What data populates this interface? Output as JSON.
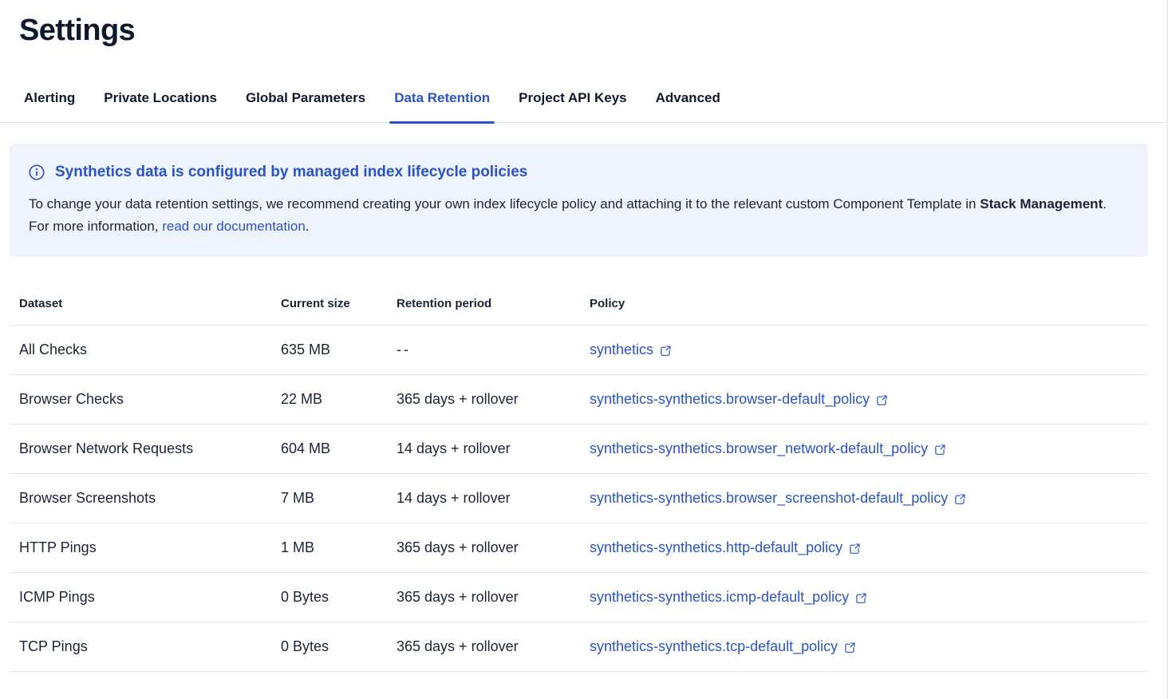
{
  "page": {
    "title": "Settings"
  },
  "tabs": {
    "items": [
      {
        "label": "Alerting",
        "selected": false
      },
      {
        "label": "Private Locations",
        "selected": false
      },
      {
        "label": "Global Parameters",
        "selected": false
      },
      {
        "label": "Data Retention",
        "selected": true
      },
      {
        "label": "Project API Keys",
        "selected": false
      },
      {
        "label": "Advanced",
        "selected": false
      }
    ]
  },
  "callout": {
    "icon": "info-icon",
    "title": "Synthetics data is configured by managed index lifecycle policies",
    "body_part1": "To change your data retention settings, we recommend creating your own index lifecycle policy and attaching it to the relevant custom Component Template in ",
    "body_bold": "Stack Management",
    "body_part2": ". For more information, ",
    "body_link": "read our documentation",
    "body_part3": "."
  },
  "table": {
    "headers": [
      "Dataset",
      "Current size",
      "Retention period",
      "Policy"
    ],
    "policy_icon": "external-link-icon",
    "rows": [
      {
        "dataset": "All Checks",
        "current_size": "635 MB",
        "retention_period": "--",
        "policy": "synthetics"
      },
      {
        "dataset": "Browser Checks",
        "current_size": "22 MB",
        "retention_period": "365 days + rollover",
        "policy": "synthetics-synthetics.browser-default_policy"
      },
      {
        "dataset": "Browser Network Requests",
        "current_size": "604 MB",
        "retention_period": "14 days + rollover",
        "policy": "synthetics-synthetics.browser_network-default_policy"
      },
      {
        "dataset": "Browser Screenshots",
        "current_size": "7 MB",
        "retention_period": "14 days + rollover",
        "policy": "synthetics-synthetics.browser_screenshot-default_policy"
      },
      {
        "dataset": "HTTP Pings",
        "current_size": "1 MB",
        "retention_period": "365 days + rollover",
        "policy": "synthetics-synthetics.http-default_policy"
      },
      {
        "dataset": "ICMP Pings",
        "current_size": "0 Bytes",
        "retention_period": "365 days + rollover",
        "policy": "synthetics-synthetics.icmp-default_policy"
      },
      {
        "dataset": "TCP Pings",
        "current_size": "0 Bytes",
        "retention_period": "365 days + rollover",
        "policy": "synthetics-synthetics.tcp-default_policy"
      }
    ]
  },
  "colors": {
    "accent_blue": "#2B53C9",
    "callout_background": "#EFF3FB",
    "text_dark": "#1B2436",
    "heading_dark": "#10182B",
    "border_light": "#E3E8F0"
  }
}
